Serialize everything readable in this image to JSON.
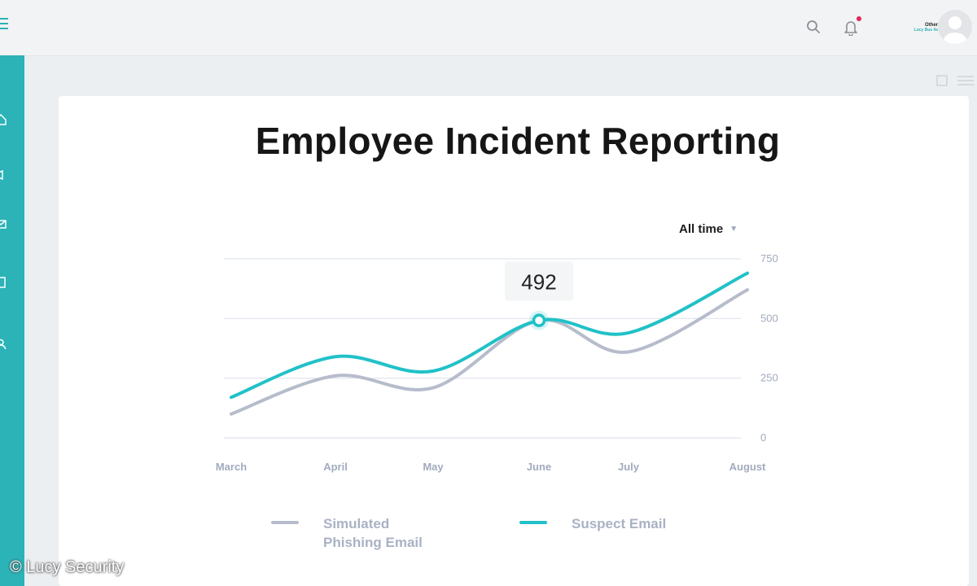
{
  "header": {
    "user_name": "Other",
    "user_role": "Lucy Bus 4s"
  },
  "page": {
    "title": "Employee Incident Reporting",
    "range_select": "All time"
  },
  "tooltip": {
    "value": "492"
  },
  "legend": {
    "phishing_line1": "Simulated",
    "phishing_line2": "Phishing Email",
    "suspect": "Suspect Email"
  },
  "watermark": "© Lucy Security",
  "chart_data": {
    "type": "line",
    "categories": [
      "March",
      "April",
      "May",
      "June",
      "July",
      "August"
    ],
    "y_ticks": [
      "750",
      "500",
      "250",
      "0"
    ],
    "ylim": [
      0,
      750
    ],
    "grid": true,
    "legend_position": "bottom",
    "series": [
      {
        "name": "Simulated Phishing Email",
        "color": "#b6bccb",
        "values": [
          100,
          260,
          210,
          492,
          360,
          620
        ]
      },
      {
        "name": "Suspect Email",
        "color": "#21c1c8",
        "values": [
          170,
          340,
          280,
          492,
          440,
          690
        ]
      }
    ],
    "highlight": {
      "category": "June",
      "value": 492
    }
  }
}
